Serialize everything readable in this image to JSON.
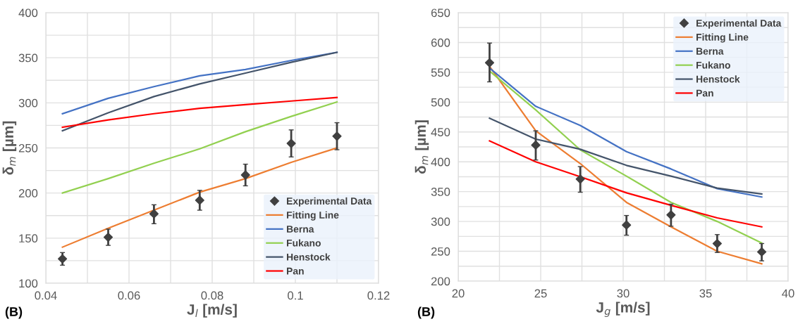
{
  "chart_data": [
    {
      "type": "line",
      "xlabel": "J$_{l}$ [m/s]",
      "ylabel": "δ$_{m}$ [µm]",
      "annotations": [
        "(B)"
      ],
      "x": [
        0.044,
        0.055,
        0.066,
        0.077,
        0.088,
        0.099,
        0.11
      ],
      "xlim": [
        0.04,
        0.12
      ],
      "xticks": [
        {
          "value": 0.04,
          "label": "0.04"
        },
        {
          "value": 0.05,
          "label": null
        },
        {
          "value": 0.06,
          "label": "0.06"
        },
        {
          "value": 0.07,
          "label": null
        },
        {
          "value": 0.08,
          "label": "0.08"
        },
        {
          "value": 0.09,
          "label": null
        },
        {
          "value": 0.1,
          "label": "0.1"
        },
        {
          "value": 0.11,
          "label": null
        },
        {
          "value": 0.12,
          "label": "0.12"
        }
      ],
      "ylim": [
        100,
        400
      ],
      "yticks": [
        100,
        {
          "value": 125,
          "label": null
        },
        150,
        {
          "value": 175,
          "label": null
        },
        200,
        {
          "value": 225,
          "label": null
        },
        250,
        {
          "value": 275,
          "label": null
        },
        300,
        {
          "value": 325,
          "label": null
        },
        350,
        {
          "value": 375,
          "label": null
        },
        400
      ],
      "grid": true,
      "legend": "bottom right",
      "series": [
        {
          "name": "Experimental Data",
          "type": "scatter",
          "marker": "diamond",
          "color": "#404040",
          "values": [
            127,
            151,
            177,
            192,
            220,
            255,
            263
          ],
          "errors": [
            [
              120,
              134
            ],
            [
              142,
              160
            ],
            [
              166,
              187
            ],
            [
              181,
              203
            ],
            [
              208,
              232
            ],
            [
              240,
              270
            ],
            [
              248,
              278
            ]
          ]
        },
        {
          "name": "Fitting Line",
          "color": "#ed7d31",
          "values": [
            140,
            161,
            181,
            201,
            216,
            234,
            250
          ]
        },
        {
          "name": "Berna",
          "color": "#4472c4",
          "values": [
            288,
            305,
            318,
            330,
            337,
            347,
            356
          ]
        },
        {
          "name": "Fukano",
          "color": "#92d050",
          "values": [
            200,
            216,
            233,
            249,
            268,
            285,
            301
          ]
        },
        {
          "name": "Henstock",
          "color": "#44546a",
          "values": [
            269,
            289,
            307,
            321,
            333,
            345,
            356
          ]
        },
        {
          "name": "Pan",
          "color": "#ff0000",
          "values": [
            273,
            281,
            288,
            294,
            298,
            302,
            306
          ]
        }
      ]
    },
    {
      "type": "line",
      "xlabel": "J$_{g}$ [m/s]",
      "ylabel": "δ$_{m}$ [µm]",
      "annotations": [
        "(B)"
      ],
      "x": [
        21.9,
        24.7,
        27.4,
        30.2,
        32.9,
        35.7,
        38.4
      ],
      "xlim": [
        20,
        40
      ],
      "xticks": [
        20,
        {
          "value": 22.5,
          "label": null
        },
        25,
        {
          "value": 27.5,
          "label": null
        },
        30,
        {
          "value": 32.5,
          "label": null
        },
        35,
        {
          "value": 37.5,
          "label": null
        },
        40
      ],
      "ylim": [
        200,
        650
      ],
      "yticks": [
        200,
        {
          "value": 225,
          "label": null
        },
        250,
        {
          "value": 275,
          "label": null
        },
        300,
        {
          "value": 325,
          "label": null
        },
        350,
        {
          "value": 375,
          "label": null
        },
        400,
        {
          "value": 425,
          "label": null
        },
        450,
        {
          "value": 475,
          "label": null
        },
        500,
        {
          "value": 525,
          "label": null
        },
        550,
        {
          "value": 575,
          "label": null
        },
        600,
        {
          "value": 625,
          "label": null
        },
        650
      ],
      "grid": true,
      "legend": "top right",
      "series": [
        {
          "name": "Experimental Data",
          "type": "scatter",
          "marker": "diamond",
          "color": "#404040",
          "values": [
            566,
            428,
            371,
            294,
            311,
            263,
            249
          ],
          "errors": [
            [
              534,
              599
            ],
            [
              403,
              452
            ],
            [
              349,
              392
            ],
            [
              277,
              310
            ],
            [
              292,
              329
            ],
            [
              248,
              278
            ],
            [
              234,
              263
            ]
          ]
        },
        {
          "name": "Fitting Line",
          "color": "#ed7d31",
          "values": [
            560,
            452,
            397,
            332,
            291,
            250,
            229
          ]
        },
        {
          "name": "Berna",
          "color": "#4472c4",
          "values": [
            557,
            493,
            461,
            417,
            388,
            355,
            341
          ]
        },
        {
          "name": "Fukano",
          "color": "#92d050",
          "values": [
            552,
            487,
            420,
            376,
            332,
            300,
            264
          ]
        },
        {
          "name": "Henstock",
          "color": "#44546a",
          "values": [
            473,
            438,
            421,
            394,
            376,
            356,
            346
          ]
        },
        {
          "name": "Pan",
          "color": "#ff0000",
          "values": [
            435,
            400,
            375,
            348,
            327,
            306,
            291
          ]
        }
      ]
    }
  ]
}
